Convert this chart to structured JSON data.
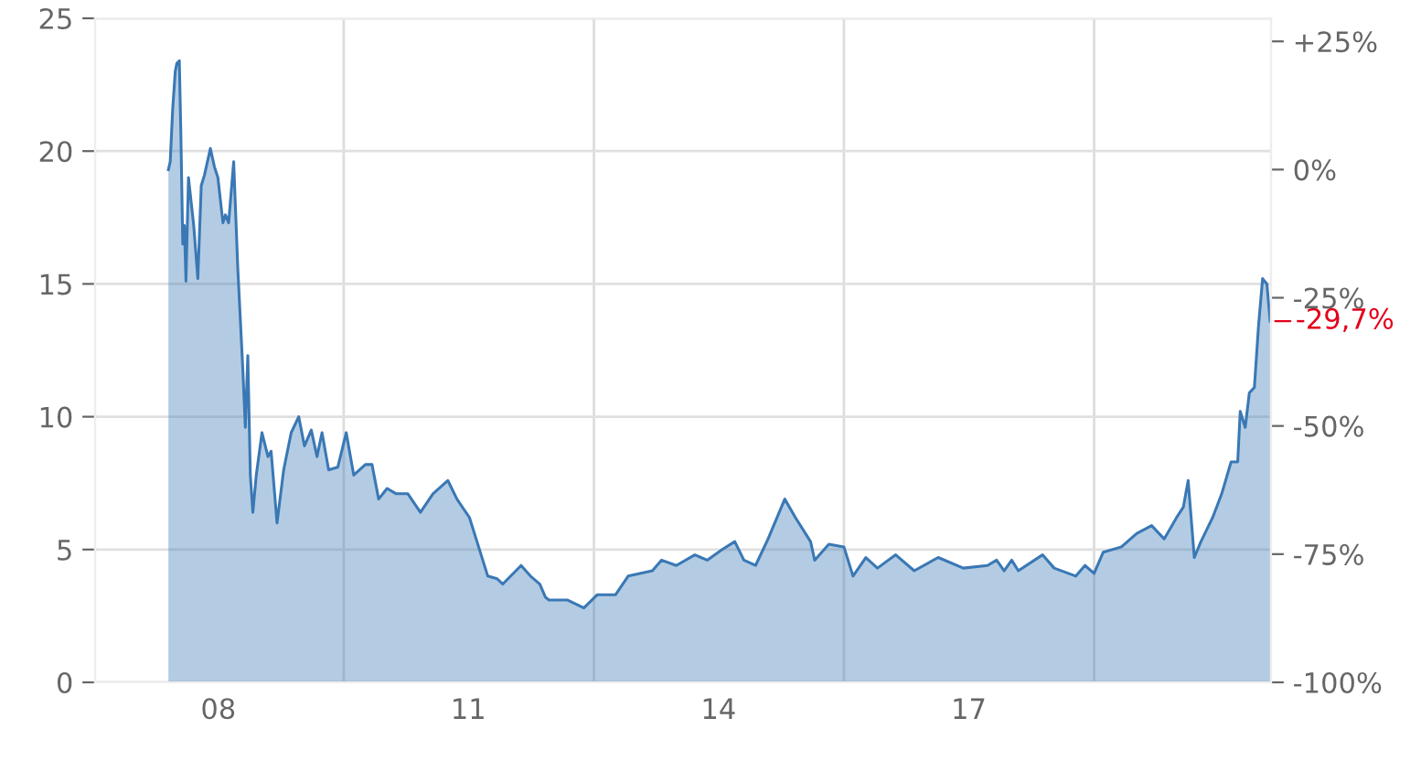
{
  "chart_data": {
    "type": "area",
    "x": [
      "2007-11-25",
      "2007-12-03",
      "2007-12-14",
      "2007-12-25",
      "2008-01-01",
      "2008-01-12",
      "2008-01-19",
      "2008-01-27",
      "2008-02-03",
      "2008-02-10",
      "2008-02-21",
      "2008-03-15",
      "2008-04-02",
      "2008-04-17",
      "2008-05-01",
      "2008-05-27",
      "2008-06-14",
      "2008-06-29",
      "2008-07-21",
      "2008-08-01",
      "2008-08-15",
      "2008-09-06",
      "2008-09-24",
      "2008-10-16",
      "2008-10-27",
      "2008-11-07",
      "2008-11-18",
      "2008-11-29",
      "2008-12-14",
      "2009-01-08",
      "2009-02-03",
      "2009-02-17",
      "2009-03-15",
      "2009-04-13",
      "2009-05-16",
      "2009-06-18",
      "2009-07-13",
      "2009-08-12",
      "2009-09-06",
      "2009-09-28",
      "2009-10-27",
      "2009-12-06",
      "2010-01-12",
      "2010-02-14",
      "2010-04-06",
      "2010-05-05",
      "2010-06-03",
      "2010-07-10",
      "2010-08-19",
      "2010-10-09",
      "2010-12-03",
      "2011-01-27",
      "2011-04-02",
      "2011-05-12",
      "2011-07-06",
      "2011-08-15",
      "2011-09-24",
      "2011-11-04",
      "2011-11-29",
      "2012-02-17",
      "2012-03-29",
      "2012-05-09",
      "2012-06-03",
      "2012-06-18",
      "2012-09-06",
      "2012-11-18",
      "2013-01-16",
      "2013-04-06",
      "2013-05-31",
      "2013-09-14",
      "2013-10-24",
      "2013-12-28",
      "2014-03-19",
      "2014-05-12",
      "2014-07-17",
      "2014-09-10",
      "2014-10-20",
      "2014-12-10",
      "2015-02-03",
      "2015-04-17",
      "2015-06-03",
      "2015-08-08",
      "2015-08-26",
      "2015-10-27",
      "2016-01-01",
      "2016-02-10",
      "2016-04-06",
      "2016-05-27",
      "2016-08-15",
      "2016-11-04",
      "2017-02-17",
      "2017-06-07",
      "2017-09-21",
      "2017-10-31",
      "2017-12-03",
      "2018-01-05",
      "2018-02-03",
      "2018-05-20",
      "2018-07-10",
      "2018-10-13",
      "2018-11-22",
      "2019-01-01",
      "2019-02-10",
      "2019-05-01",
      "2019-07-06",
      "2019-09-10",
      "2019-11-04",
      "2019-12-28",
      "2020-01-27",
      "2020-02-17",
      "2020-03-15",
      "2020-04-13",
      "2020-06-03",
      "2020-07-13",
      "2020-08-23",
      "2020-09-21",
      "2020-10-02",
      "2020-10-24",
      "2020-11-11",
      "2020-12-03",
      "2020-12-21",
      "2021-01-08",
      "2021-01-27",
      "2021-01-30",
      "2021-02-10"
    ],
    "series": [
      {
        "color": "#3a78b5",
        "values": [
          19.3,
          19.6,
          21.6,
          23.0,
          23.3,
          23.4,
          20.5,
          16.5,
          17.2,
          15.1,
          19.0,
          17.2,
          15.2,
          18.7,
          19.1,
          20.1,
          19.4,
          19.0,
          17.3,
          17.6,
          17.3,
          19.6,
          15.6,
          11.8,
          9.6,
          12.3,
          7.8,
          6.4,
          7.8,
          9.4,
          8.5,
          8.7,
          6.0,
          8.0,
          9.4,
          10.0,
          8.9,
          9.5,
          8.5,
          9.4,
          8.0,
          8.1,
          9.4,
          7.8,
          8.2,
          8.2,
          6.9,
          7.3,
          7.1,
          7.1,
          6.4,
          7.1,
          7.6,
          6.9,
          6.2,
          5.1,
          4.0,
          3.9,
          3.7,
          4.4,
          4.0,
          3.7,
          3.2,
          3.1,
          3.1,
          2.8,
          3.3,
          3.3,
          4.0,
          4.2,
          4.6,
          4.4,
          4.8,
          4.6,
          5.0,
          5.3,
          4.6,
          4.4,
          5.4,
          6.9,
          6.2,
          5.3,
          4.6,
          5.2,
          5.1,
          4.0,
          4.7,
          4.3,
          4.8,
          4.2,
          4.7,
          4.3,
          4.4,
          4.6,
          4.2,
          4.6,
          4.2,
          4.8,
          4.3,
          4.0,
          4.4,
          4.1,
          4.9,
          5.1,
          5.6,
          5.9,
          5.4,
          6.2,
          6.6,
          7.6,
          4.7,
          5.3,
          6.2,
          7.1,
          8.3,
          8.3,
          10.2,
          9.6,
          10.9,
          11.1,
          13.4,
          15.2,
          15.0,
          14.7,
          13.6
        ]
      }
    ],
    "xlim": [
      "2007-01-08",
      "2021-02-14"
    ],
    "xticks": [
      {
        "value": "2008-07-01",
        "label": "08"
      },
      {
        "value": "2011-07-01",
        "label": "11"
      },
      {
        "value": "2014-07-01",
        "label": "14"
      },
      {
        "value": "2017-07-01",
        "label": "17"
      }
    ],
    "ylim": [
      0,
      25
    ],
    "yticks": [
      0,
      5,
      10,
      15,
      20,
      25
    ],
    "y2lim": [
      -100,
      29.5
    ],
    "y2ticks": [
      {
        "value": 25,
        "label": "+25%"
      },
      {
        "value": 0,
        "label": "0%"
      },
      {
        "value": -25,
        "label": "-25%"
      },
      {
        "value": -50,
        "label": "-50%"
      },
      {
        "value": -75,
        "label": "-75%"
      },
      {
        "value": -100,
        "label": "-100%"
      }
    ],
    "ref_lines": [
      {
        "axis": "x",
        "value": "2010-01-01",
        "color": "#dddddd"
      },
      {
        "axis": "x",
        "value": "2013-01-01",
        "color": "#dddddd"
      },
      {
        "axis": "x",
        "value": "2016-01-01",
        "color": "#dddddd"
      },
      {
        "axis": "x",
        "value": "2019-01-01",
        "color": "#dddddd"
      }
    ],
    "annotations": [
      {
        "text": "-29,7%",
        "x": "2021-02-10",
        "y": 13.6
      }
    ],
    "grid": "y",
    "legend": false
  }
}
